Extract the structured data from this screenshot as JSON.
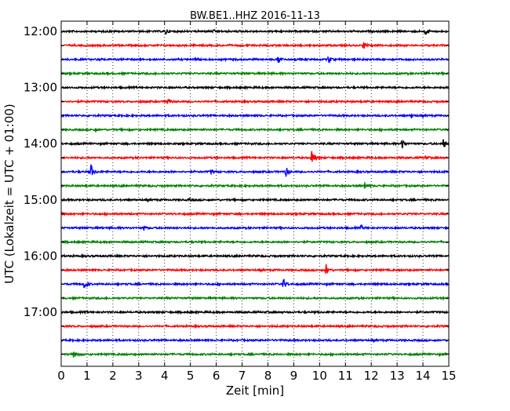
{
  "chart_data": {
    "type": "line",
    "chart_kind": "dayplot-helicorder",
    "title": "BW.BE1..HHZ 2016-11-13",
    "xlabel": "Zeit  [min]",
    "ylabel": "UTC (Lokalzeit = UTC + 01:00)",
    "xlim": [
      0,
      15
    ],
    "x_ticks": [
      0,
      1,
      2,
      3,
      4,
      5,
      6,
      7,
      8,
      9,
      10,
      11,
      12,
      13,
      14,
      15
    ],
    "x_tick_labels": [
      "0",
      "1",
      "2",
      "3",
      "4",
      "5",
      "6",
      "7",
      "8",
      "9",
      "10",
      "11",
      "12",
      "13",
      "14",
      "15"
    ],
    "vertical_grid": "dotted, every minute",
    "row_interval_minutes": 15,
    "row_colors": [
      "#000000",
      "#ff0000",
      "#0000ff",
      "#008000"
    ],
    "y_tick_labels": [
      "12:00",
      "13:00",
      "14:00",
      "15:00",
      "16:00",
      "17:00"
    ],
    "rows": [
      {
        "start": "12:00",
        "events": [
          {
            "t": 4.05,
            "amp": 0.35
          },
          {
            "t": 5.9,
            "amp": 0.12
          },
          {
            "t": 14.1,
            "amp": 0.35
          }
        ]
      },
      {
        "start": "12:15",
        "events": [
          {
            "t": 11.7,
            "amp": 0.45
          }
        ]
      },
      {
        "start": "12:30",
        "events": [
          {
            "t": 1.5,
            "amp": 0.12
          },
          {
            "t": 5.2,
            "amp": 0.12
          },
          {
            "t": 8.4,
            "amp": 0.5
          },
          {
            "t": 10.35,
            "amp": 0.42
          }
        ]
      },
      {
        "start": "12:45",
        "events": []
      },
      {
        "start": "13:00",
        "events": []
      },
      {
        "start": "13:15",
        "events": [
          {
            "t": 4.1,
            "amp": 0.5
          }
        ]
      },
      {
        "start": "13:30",
        "events": [
          {
            "t": 13.55,
            "amp": 0.18
          }
        ]
      },
      {
        "start": "13:45",
        "events": [
          {
            "t": 1.3,
            "amp": 0.1
          }
        ]
      },
      {
        "start": "14:00",
        "events": [
          {
            "t": 13.2,
            "amp": 0.62
          },
          {
            "t": 14.8,
            "amp": 0.62
          }
        ]
      },
      {
        "start": "14:15",
        "events": [
          {
            "t": 9.7,
            "amp": 0.95
          },
          {
            "t": 14.1,
            "amp": 0.2
          }
        ]
      },
      {
        "start": "14:30",
        "events": [
          {
            "t": 1.15,
            "amp": 0.85
          },
          {
            "t": 5.8,
            "amp": 0.2
          },
          {
            "t": 8.7,
            "amp": 0.5
          }
        ]
      },
      {
        "start": "14:45",
        "events": [
          {
            "t": 11.75,
            "amp": 0.45
          }
        ]
      },
      {
        "start": "15:00",
        "events": [
          {
            "t": 4.95,
            "amp": 0.12
          }
        ]
      },
      {
        "start": "15:15",
        "events": []
      },
      {
        "start": "15:30",
        "events": [
          {
            "t": 3.2,
            "amp": 0.22
          },
          {
            "t": 11.6,
            "amp": 0.22
          }
        ]
      },
      {
        "start": "15:45",
        "events": []
      },
      {
        "start": "16:00",
        "events": []
      },
      {
        "start": "16:15",
        "events": [
          {
            "t": 10.25,
            "amp": 0.7
          }
        ]
      },
      {
        "start": "16:30",
        "events": [
          {
            "t": 0.9,
            "amp": 0.5
          },
          {
            "t": 8.6,
            "amp": 0.65
          }
        ]
      },
      {
        "start": "16:45",
        "events": []
      },
      {
        "start": "17:00",
        "events": []
      },
      {
        "start": "17:15",
        "events": []
      },
      {
        "start": "17:30",
        "events": []
      },
      {
        "start": "17:45",
        "events": [
          {
            "t": 0.5,
            "amp": 0.65
          }
        ]
      }
    ]
  }
}
